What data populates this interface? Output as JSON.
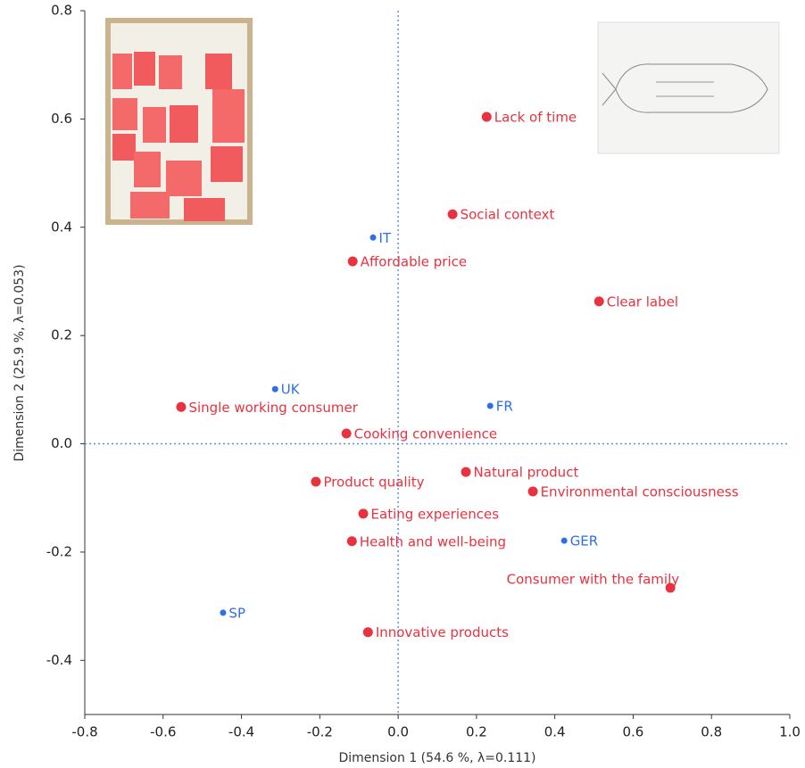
{
  "chart_data": {
    "type": "scatter",
    "x_label": "Dimension 1  (54.6 %, λ=0.111)",
    "y_label": "Dimension 2  (25.9 %, λ=0.053)",
    "xlim": [
      -0.8,
      1.0
    ],
    "xticks": [
      -0.8,
      -0.6,
      -0.4,
      -0.2,
      {
        "value": 0,
        "label": "0.0"
      },
      0.2,
      0.4,
      0.6,
      0.8,
      {
        "value": 1,
        "label": "1.0"
      }
    ],
    "ylim": [
      -0.5,
      0.8
    ],
    "yticks": [
      -0.4,
      -0.2,
      {
        "value": 0,
        "label": "0.0"
      },
      0.2,
      0.4,
      0.6,
      0.8
    ],
    "reference_line_color": "#5b8fe6",
    "series": [
      {
        "color": "#e8323f",
        "labels": [
          "Lack of time",
          "Social context",
          "Affordable price",
          "Clear label",
          "Single working consumer",
          "Cooking convenience",
          "Natural product",
          "Product quality",
          "Environmental consciousness",
          "Eating experiences",
          "Health and well-being",
          "Consumer with the family",
          "Innovative products"
        ],
        "x": [
          0.226,
          0.139,
          -0.116,
          0.513,
          -0.554,
          -0.132,
          0.173,
          -0.21,
          0.344,
          -0.089,
          -0.118,
          0.695,
          -0.077
        ],
        "y": [
          0.604,
          0.424,
          0.337,
          0.263,
          0.068,
          0.019,
          -0.052,
          -0.07,
          -0.088,
          -0.129,
          -0.18,
          -0.266,
          -0.348
        ]
      },
      {
        "color": "#2f6fe6",
        "labels": [
          "IT",
          "UK",
          "FR",
          "GER",
          "SP"
        ],
        "x": [
          -0.064,
          -0.314,
          0.235,
          0.424,
          -0.447
        ],
        "y": [
          0.381,
          0.101,
          0.07,
          -0.179,
          -0.312
        ]
      }
    ]
  }
}
